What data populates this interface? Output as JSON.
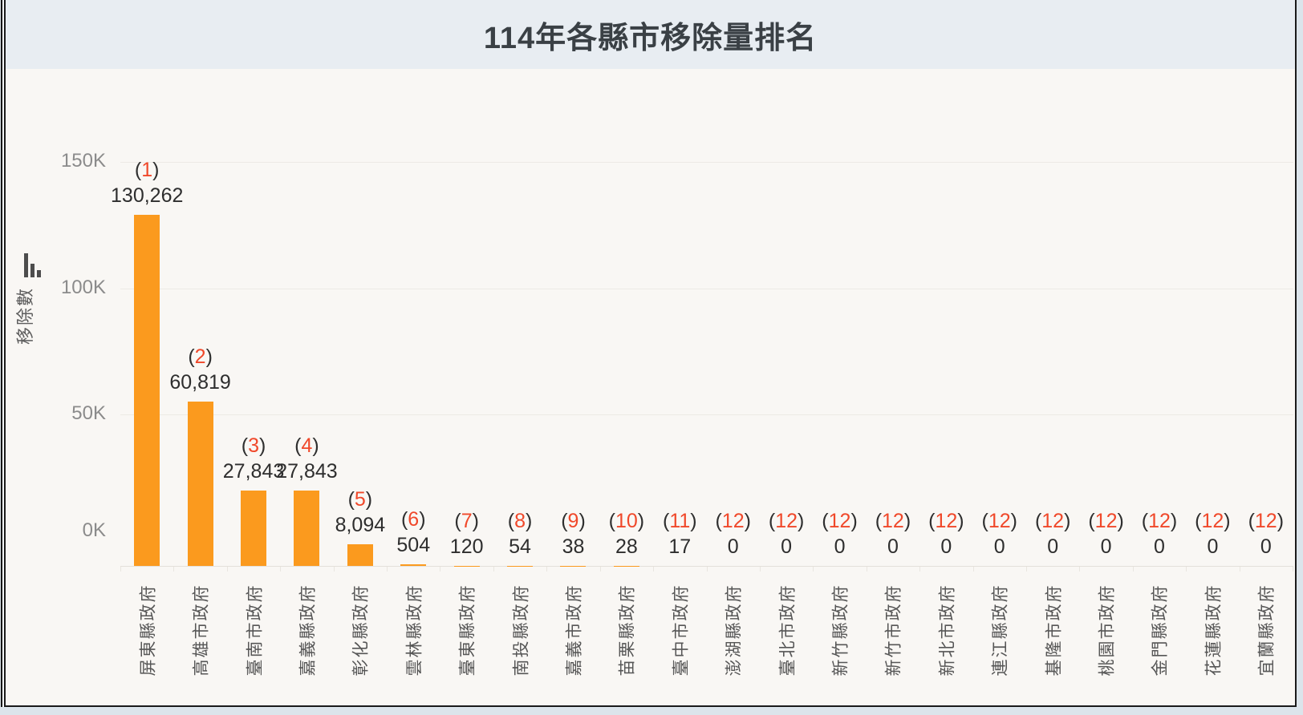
{
  "header": {
    "title": "114年各縣市移除量排名"
  },
  "chart_data": {
    "type": "bar",
    "title": "114年各縣市移除量排名",
    "ylabel": "移除數",
    "xlabel": "",
    "ylim": [
      0,
      150000
    ],
    "grid": true,
    "legend": false,
    "y_ticks": [
      "150K",
      "100K",
      "50K",
      "0K"
    ],
    "categories": [
      "屏東縣政府",
      "高雄市政府",
      "臺南市政府",
      "嘉義縣政府",
      "彰化縣政府",
      "雲林縣政府",
      "臺東縣政府",
      "南投縣政府",
      "嘉義市政府",
      "苗栗縣政府",
      "臺中市政府",
      "澎湖縣政府",
      "臺北市政府",
      "新竹縣政府",
      "新竹市政府",
      "新北市政府",
      "連江縣政府",
      "基隆市政府",
      "桃園市政府",
      "金門縣政府",
      "花蓮縣政府",
      "宜蘭縣政府"
    ],
    "values": [
      130262,
      60819,
      27843,
      27843,
      8094,
      504,
      120,
      54,
      38,
      28,
      17,
      0,
      0,
      0,
      0,
      0,
      0,
      0,
      0,
      0,
      0,
      0
    ],
    "value_labels": [
      "130,262",
      "60,819",
      "27,843",
      "27,843",
      "8,094",
      "504",
      "120",
      "54",
      "38",
      "28",
      "17",
      "0",
      "0",
      "0",
      "0",
      "0",
      "0",
      "0",
      "0",
      "0",
      "0",
      "0"
    ],
    "ranks": [
      1,
      2,
      3,
      4,
      5,
      6,
      7,
      8,
      9,
      10,
      11,
      12,
      12,
      12,
      12,
      12,
      12,
      12,
      12,
      12,
      12,
      12
    ],
    "colors": {
      "bar": "#fb9a1e",
      "rank_number": "#f0482a"
    }
  },
  "icons": {
    "y_axis_sort": "sort-descending-icon"
  }
}
